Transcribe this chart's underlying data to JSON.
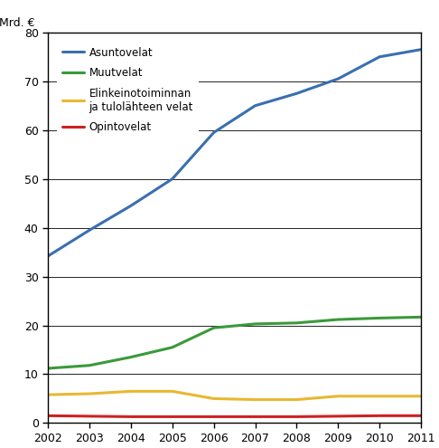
{
  "years": [
    2002,
    2003,
    2004,
    2005,
    2006,
    2007,
    2008,
    2009,
    2010,
    2011
  ],
  "asuntovelat": [
    34.2,
    39.5,
    44.5,
    50.0,
    59.5,
    65.0,
    67.5,
    70.5,
    75.0,
    76.5
  ],
  "muutvelat": [
    11.2,
    11.8,
    13.5,
    15.5,
    19.5,
    20.3,
    20.5,
    21.2,
    21.5,
    21.7
  ],
  "elinkeinotoiminnan": [
    5.8,
    6.0,
    6.5,
    6.5,
    5.0,
    4.8,
    4.8,
    5.5,
    5.5,
    5.5
  ],
  "opintovelat": [
    1.5,
    1.4,
    1.3,
    1.3,
    1.3,
    1.3,
    1.3,
    1.4,
    1.5,
    1.5
  ],
  "asuntovelat_color": "#3a6faf",
  "muutvelat_color": "#3a9a3a",
  "elinkeinotoiminnan_color": "#e8b830",
  "opintovelat_color": "#cc2222",
  "ylabel": "Mrd. €",
  "ylim": [
    0,
    80
  ],
  "yticks": [
    0,
    10,
    20,
    30,
    40,
    50,
    60,
    70,
    80
  ],
  "legend_labels": [
    "Asuntovelat",
    "Muutvelat",
    "Elinkeinotoiminnan\nja tulolähteen velat",
    "Opintovelat"
  ],
  "line_width": 2.2
}
